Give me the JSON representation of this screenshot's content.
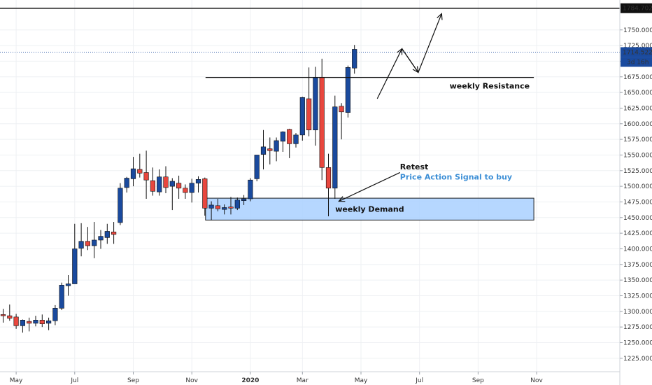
{
  "colors": {
    "bull": "#1a4a9e",
    "bear": "#e8473e",
    "grid": "#eef0f3",
    "zone_fill": "#a9d0ff",
    "zone_border": "#1b1b1b",
    "price_tag": "#1a4a9e",
    "signal_text": "#3d8fd6",
    "ink": "#111111"
  },
  "chart_data": {
    "type": "candlestick",
    "title": "",
    "xlabel": "",
    "ylabel": "",
    "ylim": [
      1200,
      1795
    ],
    "grid": true,
    "y_ticks": [
      1225,
      1250,
      1275,
      1300,
      1325,
      1350,
      1375,
      1400,
      1425,
      1450,
      1475,
      1500,
      1525,
      1550,
      1575,
      1600,
      1625,
      1650,
      1675,
      1700,
      1725,
      1750
    ],
    "y_tick_labels": [
      "1225.000",
      "1250.000",
      "1275.000",
      "1300.000",
      "1325.000",
      "1350.000",
      "1375.000",
      "1400.000",
      "1425.000",
      "1450.000",
      "1475.000",
      "1500.000",
      "1525.000",
      "1550.000",
      "1575.000",
      "1600.000",
      "1625.000",
      "1650.000",
      "1675.000",
      "1700.000",
      "1725.000",
      "1750.000"
    ],
    "x_labels": [
      "May",
      "Jul",
      "Sep",
      "Nov",
      "2020",
      "Mar",
      "May",
      "Jul",
      "Sep",
      "Nov"
    ],
    "x_label_week": [
      2,
      11,
      20,
      29,
      38,
      46,
      55,
      64,
      73,
      82
    ],
    "candles": [
      {
        "w": 0,
        "o": 1295,
        "h": 1304,
        "l": 1282,
        "c": 1293
      },
      {
        "w": 1,
        "o": 1293,
        "h": 1311,
        "l": 1285,
        "c": 1289
      },
      {
        "w": 2,
        "o": 1291,
        "h": 1296,
        "l": 1272,
        "c": 1277
      },
      {
        "w": 3,
        "o": 1277,
        "h": 1287,
        "l": 1266,
        "c": 1286
      },
      {
        "w": 4,
        "o": 1284,
        "h": 1290,
        "l": 1268,
        "c": 1281
      },
      {
        "w": 5,
        "o": 1281,
        "h": 1293,
        "l": 1276,
        "c": 1286
      },
      {
        "w": 6,
        "o": 1286,
        "h": 1295,
        "l": 1275,
        "c": 1280
      },
      {
        "w": 7,
        "o": 1281,
        "h": 1290,
        "l": 1270,
        "c": 1285
      },
      {
        "w": 8,
        "o": 1285,
        "h": 1310,
        "l": 1278,
        "c": 1305
      },
      {
        "w": 9,
        "o": 1305,
        "h": 1346,
        "l": 1302,
        "c": 1342
      },
      {
        "w": 10,
        "o": 1341,
        "h": 1358,
        "l": 1325,
        "c": 1344
      },
      {
        "w": 11,
        "o": 1344,
        "h": 1440,
        "l": 1344,
        "c": 1400
      },
      {
        "w": 12,
        "o": 1401,
        "h": 1441,
        "l": 1388,
        "c": 1412
      },
      {
        "w": 13,
        "o": 1412,
        "h": 1435,
        "l": 1398,
        "c": 1405
      },
      {
        "w": 14,
        "o": 1405,
        "h": 1443,
        "l": 1385,
        "c": 1414
      },
      {
        "w": 15,
        "o": 1414,
        "h": 1430,
        "l": 1400,
        "c": 1420
      },
      {
        "w": 16,
        "o": 1418,
        "h": 1440,
        "l": 1408,
        "c": 1428
      },
      {
        "w": 17,
        "o": 1427,
        "h": 1443,
        "l": 1408,
        "c": 1423
      },
      {
        "w": 18,
        "o": 1442,
        "h": 1505,
        "l": 1438,
        "c": 1497
      },
      {
        "w": 19,
        "o": 1498,
        "h": 1515,
        "l": 1490,
        "c": 1513
      },
      {
        "w": 20,
        "o": 1512,
        "h": 1547,
        "l": 1500,
        "c": 1528
      },
      {
        "w": 21,
        "o": 1527,
        "h": 1552,
        "l": 1514,
        "c": 1521
      },
      {
        "w": 22,
        "o": 1522,
        "h": 1557,
        "l": 1480,
        "c": 1510
      },
      {
        "w": 23,
        "o": 1509,
        "h": 1530,
        "l": 1485,
        "c": 1492
      },
      {
        "w": 24,
        "o": 1491,
        "h": 1527,
        "l": 1485,
        "c": 1515
      },
      {
        "w": 25,
        "o": 1515,
        "h": 1532,
        "l": 1489,
        "c": 1498
      },
      {
        "w": 26,
        "o": 1500,
        "h": 1513,
        "l": 1462,
        "c": 1508
      },
      {
        "w": 27,
        "o": 1505,
        "h": 1517,
        "l": 1480,
        "c": 1497
      },
      {
        "w": 28,
        "o": 1497,
        "h": 1503,
        "l": 1480,
        "c": 1490
      },
      {
        "w": 29,
        "o": 1490,
        "h": 1512,
        "l": 1474,
        "c": 1505
      },
      {
        "w": 30,
        "o": 1505,
        "h": 1516,
        "l": 1490,
        "c": 1511
      },
      {
        "w": 31,
        "o": 1512,
        "h": 1514,
        "l": 1453,
        "c": 1465
      },
      {
        "w": 32,
        "o": 1465,
        "h": 1476,
        "l": 1446,
        "c": 1470
      },
      {
        "w": 33,
        "o": 1469,
        "h": 1480,
        "l": 1460,
        "c": 1464
      },
      {
        "w": 34,
        "o": 1463,
        "h": 1471,
        "l": 1455,
        "c": 1466
      },
      {
        "w": 35,
        "o": 1467,
        "h": 1483,
        "l": 1455,
        "c": 1465
      },
      {
        "w": 36,
        "o": 1465,
        "h": 1482,
        "l": 1462,
        "c": 1478
      },
      {
        "w": 37,
        "o": 1477,
        "h": 1486,
        "l": 1470,
        "c": 1480
      },
      {
        "w": 38,
        "o": 1480,
        "h": 1513,
        "l": 1476,
        "c": 1510
      },
      {
        "w": 39,
        "o": 1512,
        "h": 1550,
        "l": 1508,
        "c": 1550
      },
      {
        "w": 40,
        "o": 1551,
        "h": 1590,
        "l": 1527,
        "c": 1563
      },
      {
        "w": 41,
        "o": 1560,
        "h": 1578,
        "l": 1535,
        "c": 1557
      },
      {
        "w": 42,
        "o": 1556,
        "h": 1578,
        "l": 1540,
        "c": 1573
      },
      {
        "w": 43,
        "o": 1572,
        "h": 1588,
        "l": 1555,
        "c": 1587
      },
      {
        "w": 44,
        "o": 1591,
        "h": 1592,
        "l": 1545,
        "c": 1568
      },
      {
        "w": 45,
        "o": 1568,
        "h": 1585,
        "l": 1562,
        "c": 1582
      },
      {
        "w": 46,
        "o": 1582,
        "h": 1643,
        "l": 1573,
        "c": 1642
      },
      {
        "w": 47,
        "o": 1640,
        "h": 1690,
        "l": 1580,
        "c": 1590
      },
      {
        "w": 48,
        "o": 1590,
        "h": 1691,
        "l": 1565,
        "c": 1674
      },
      {
        "w": 49,
        "o": 1674,
        "h": 1704,
        "l": 1510,
        "c": 1530
      },
      {
        "w": 50,
        "o": 1530,
        "h": 1552,
        "l": 1452,
        "c": 1497
      },
      {
        "w": 51,
        "o": 1497,
        "h": 1645,
        "l": 1480,
        "c": 1627
      },
      {
        "w": 52,
        "o": 1628,
        "h": 1633,
        "l": 1575,
        "c": 1619
      },
      {
        "w": 53,
        "o": 1618,
        "h": 1693,
        "l": 1610,
        "c": 1690
      },
      {
        "w": 54,
        "o": 1689,
        "h": 1726,
        "l": 1680,
        "c": 1719
      }
    ],
    "annotations": {
      "weekly_resistance": {
        "price": 1674,
        "label": "weekly Resistance",
        "from_week": 31
      },
      "top_line": {
        "price": 1784.702,
        "label": "1784.702"
      },
      "weekly_demand": {
        "low": 1446,
        "high": 1481,
        "label": "weekly Demand",
        "from_week": 31,
        "to_week": 82
      },
      "current_price": {
        "price": 1714.522,
        "label": "1714.522",
        "countdown": "3d 16h"
      },
      "retest": {
        "label": "Retest",
        "sublabel": "Price Action Signal to buy"
      },
      "partial_tick_label": "17"
    }
  }
}
